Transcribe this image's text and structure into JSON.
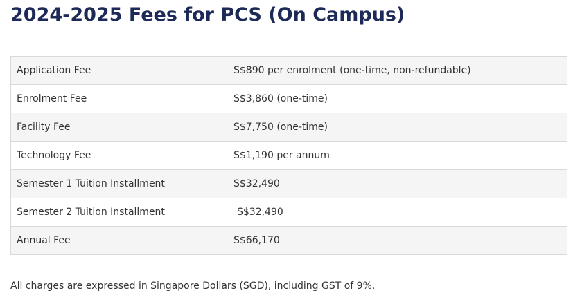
{
  "page": {
    "title": "2024-2025 Fees for PCS (On Campus)",
    "footnote": "All charges are expressed in Singapore Dollars (SGD), including GST of 9%."
  },
  "fees": {
    "rows": [
      {
        "name": "Application Fee",
        "value": "S$890 per enrolment (one-time, non-refundable)"
      },
      {
        "name": "Enrolment Fee",
        "value": "S$3,860 (one-time)"
      },
      {
        "name": "Facility Fee",
        "value": "S$7,750 (one-time)"
      },
      {
        "name": "Technology Fee",
        "value": "S$1,190 per annum"
      },
      {
        "name": "Semester 1 Tuition Installment",
        "value": "S$32,490"
      },
      {
        "name": "Semester 2 Tuition Installment",
        "value": "S$32,490"
      },
      {
        "name": "Annual Fee",
        "value": "S$66,170"
      }
    ]
  }
}
